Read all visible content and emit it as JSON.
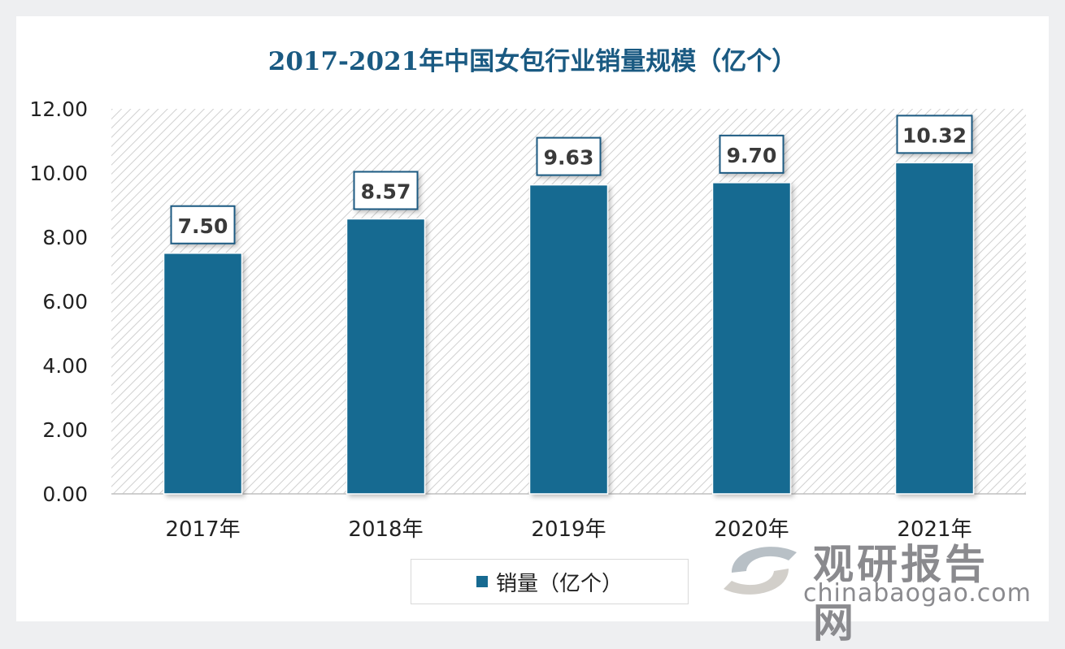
{
  "chart_data": {
    "type": "bar",
    "title": "2017-2021年中国女包行业销量规模（亿个）",
    "categories": [
      "2017年",
      "2018年",
      "2019年",
      "2020年",
      "2021年"
    ],
    "series": [
      {
        "name": "销量（亿个）",
        "values": [
          7.5,
          8.57,
          9.63,
          9.7,
          10.32
        ]
      }
    ],
    "data_labels": [
      "7.50",
      "8.57",
      "9.63",
      "9.70",
      "10.32"
    ],
    "ylim": [
      0,
      12
    ],
    "yticks": [
      "0.00",
      "2.00",
      "4.00",
      "6.00",
      "8.00",
      "10.00",
      "12.00"
    ],
    "grid": false,
    "legend": "bottom",
    "bar_color": "#176a91",
    "label_border_color": "#1a5a82"
  },
  "watermark": {
    "brand_cn": "观研报告网",
    "brand_en": "chinabaogao.com"
  }
}
